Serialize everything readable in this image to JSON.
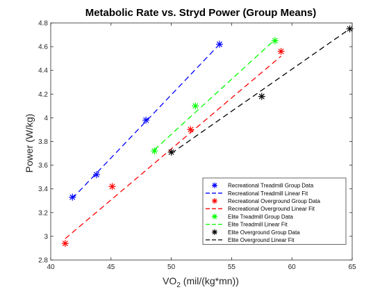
{
  "chart_data": {
    "type": "scatter",
    "title": "Metabolic Rate vs. Stryd Power (Group Means)",
    "xlabel": {
      "main": "VO",
      "sub": "2",
      "rest": " (mil/(kg*mn))"
    },
    "ylabel": "Power (W/kg)",
    "xlim": [
      40,
      65
    ],
    "ylim": [
      2.8,
      4.8
    ],
    "xticks": [
      40,
      45,
      50,
      55,
      60,
      65
    ],
    "yticks": [
      2.8,
      3,
      3.2,
      3.4,
      3.6,
      3.8,
      4,
      4.2,
      4.4,
      4.6,
      4.8
    ],
    "grid": false,
    "legend_position": "lower-right",
    "series": [
      {
        "name": "Recreational Treadmill Group Data",
        "kind": "points",
        "color": "#0000ff",
        "x": [
          41.8,
          43.8,
          47.9,
          54.0
        ],
        "y": [
          3.33,
          3.52,
          3.98,
          4.62
        ]
      },
      {
        "name": "Recreational Treadmill Linear Fit",
        "kind": "line",
        "color": "#0000ff",
        "x": [
          41.8,
          54.0
        ],
        "y": [
          3.32,
          4.62
        ]
      },
      {
        "name": "Recreational Overground Group Data",
        "kind": "points",
        "color": "#ff0000",
        "x": [
          41.2,
          45.1,
          51.6,
          59.1
        ],
        "y": [
          2.94,
          3.42,
          3.9,
          4.56
        ]
      },
      {
        "name": "Recreational Overground Linear Fit",
        "kind": "line",
        "color": "#ff0000",
        "x": [
          41.2,
          59.1
        ],
        "y": [
          2.98,
          4.52
        ]
      },
      {
        "name": "Elite Treadmill Group Data",
        "kind": "points",
        "color": "#00ff00",
        "x": [
          48.6,
          52.0,
          58.6
        ],
        "y": [
          3.72,
          4.1,
          4.65
        ]
      },
      {
        "name": "Elite Treadmill Linear Fit",
        "kind": "line",
        "color": "#00ff00",
        "x": [
          48.6,
          58.6
        ],
        "y": [
          3.73,
          4.66
        ]
      },
      {
        "name": "Elite Overground Group Data",
        "kind": "points",
        "color": "#000000",
        "x": [
          50.0,
          57.5,
          64.8
        ],
        "y": [
          3.71,
          4.18,
          4.75
        ]
      },
      {
        "name": "Elite Overground Linear Fit",
        "kind": "line",
        "color": "#000000",
        "x": [
          50.0,
          64.8
        ],
        "y": [
          3.7,
          4.75
        ]
      }
    ]
  }
}
